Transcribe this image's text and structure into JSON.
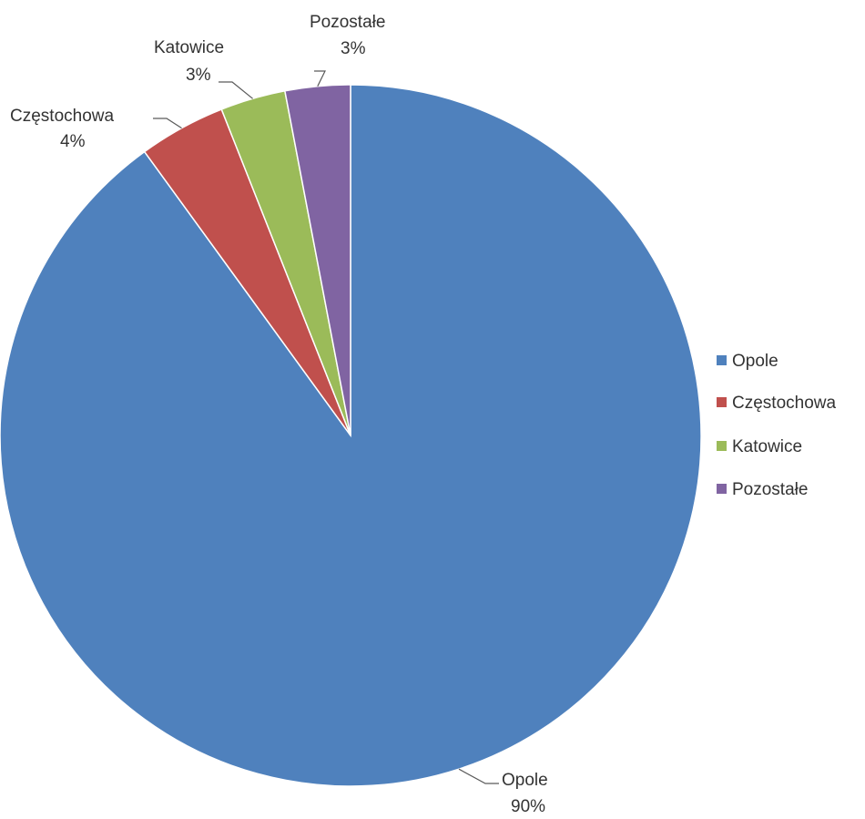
{
  "chart_data": {
    "type": "pie",
    "title": "",
    "categories": [
      "Opole",
      "Częstochowa",
      "Katowice",
      "Pozostałe"
    ],
    "values": [
      90,
      4,
      3,
      3
    ],
    "data_labels": [
      "90%",
      "4%",
      "3%",
      "3%"
    ],
    "colors": [
      "#4f81bd",
      "#c0504d",
      "#9bbb59",
      "#8064a2"
    ],
    "legend": {
      "position": "right",
      "entries": [
        "Opole",
        "Częstochowa",
        "Katowice",
        "Pozostałe"
      ]
    }
  }
}
